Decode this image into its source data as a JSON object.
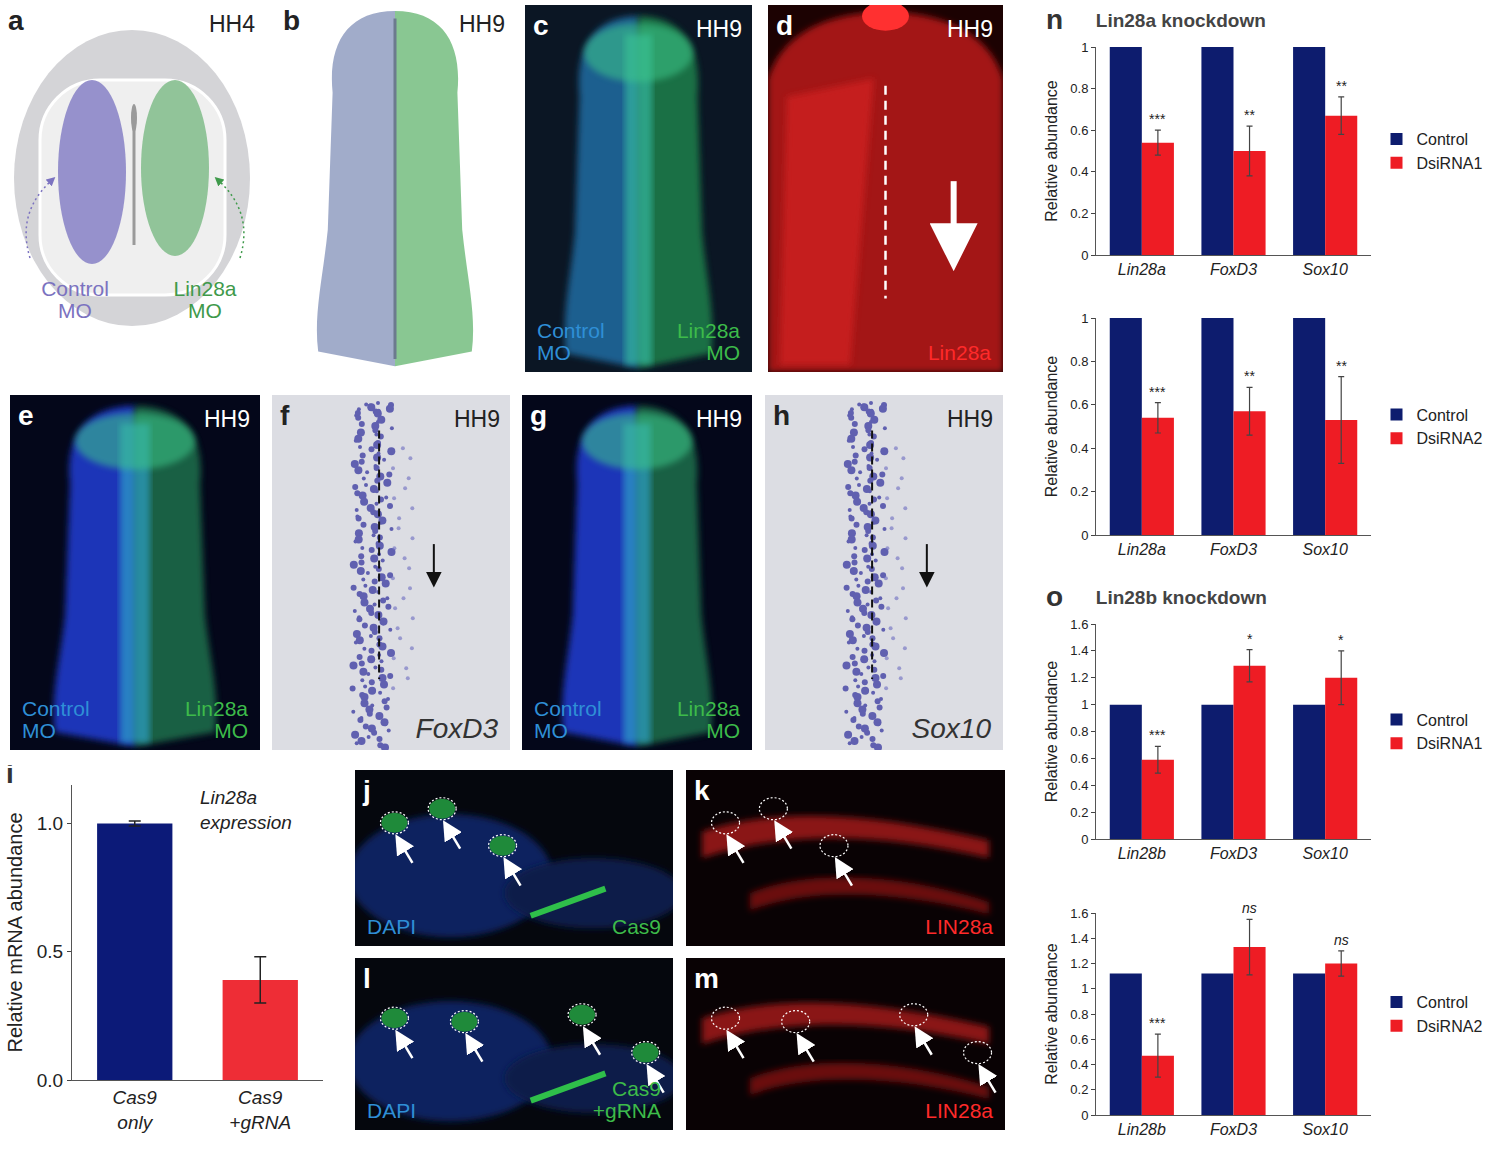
{
  "chart_data": [
    {
      "panel": "i",
      "type": "bar",
      "title": "Lin28a expression",
      "categories": [
        "Cas9 only",
        "Cas9 +gRNA"
      ],
      "values": [
        1.0,
        0.39
      ],
      "errors": [
        0.01,
        0.09
      ],
      "colors": [
        "#0c1a78",
        "#ee2d36"
      ],
      "y_label": "Relative mRNA abundance",
      "ylim": [
        0,
        1.15
      ],
      "yticks": [
        {
          "value": 0,
          "label": "0.0"
        },
        {
          "value": 0.5,
          "label": "0.5"
        },
        {
          "value": 1,
          "label": "1.0"
        }
      ],
      "grid": false
    },
    {
      "panel": "n",
      "type": "bar",
      "title": "Lin28a knockdown",
      "categories": [
        "Lin28a",
        "FoxD3",
        "Sox10"
      ],
      "series": [
        {
          "name": "Control",
          "color": "#0d1c6e",
          "values": [
            1,
            1,
            1
          ]
        },
        {
          "name": "DsiRNA1",
          "color": "#ee1c24",
          "values": [
            0.54,
            0.5,
            0.67
          ],
          "errors": [
            0.06,
            0.12,
            0.09
          ],
          "significance": [
            "***",
            "**",
            "**"
          ]
        }
      ],
      "y_label": "Relative abundance",
      "ylim": [
        0,
        1
      ],
      "yticks": [
        0,
        0.2,
        0.4,
        0.6,
        0.8,
        1
      ],
      "legend": "right",
      "grid": false
    },
    {
      "type": "bar",
      "categories": [
        "Lin28a",
        "FoxD3",
        "Sox10"
      ],
      "series": [
        {
          "name": "Control",
          "color": "#0d1c6e",
          "values": [
            1,
            1,
            1
          ]
        },
        {
          "name": "DsiRNA2",
          "color": "#ee1c24",
          "values": [
            0.54,
            0.57,
            0.53
          ],
          "errors": [
            0.07,
            0.11,
            0.2
          ],
          "significance": [
            "***",
            "**",
            "**"
          ]
        }
      ],
      "y_label": "Relative abundance",
      "ylim": [
        0,
        1
      ],
      "yticks": [
        0,
        0.2,
        0.4,
        0.6,
        0.8,
        1
      ],
      "legend": "right",
      "grid": false
    },
    {
      "panel": "o",
      "type": "bar",
      "title": "Lin28b knockdown",
      "categories": [
        "Lin28b",
        "FoxD3",
        "Sox10"
      ],
      "series": [
        {
          "name": "Control",
          "color": "#0d1c6e",
          "values": [
            1,
            1,
            1
          ]
        },
        {
          "name": "DsiRNA1",
          "color": "#ee1c24",
          "values": [
            0.59,
            1.29,
            1.2
          ],
          "errors": [
            0.1,
            0.12,
            0.2
          ],
          "significance": [
            "***",
            "*",
            "*"
          ]
        }
      ],
      "y_label": "Relative abundance",
      "ylim": [
        0,
        1.6
      ],
      "yticks": [
        0,
        0.2,
        0.4,
        0.6,
        0.8,
        1,
        1.2,
        1.4,
        1.6
      ],
      "legend": "right",
      "grid": false
    },
    {
      "type": "bar",
      "categories": [
        "Lin28b",
        "FoxD3",
        "Sox10"
      ],
      "series": [
        {
          "name": "Control",
          "color": "#0d1c6e",
          "values": [
            1.12,
            1.12,
            1.12
          ]
        },
        {
          "name": "DsiRNA2",
          "color": "#ee1c24",
          "values": [
            0.47,
            1.33,
            1.2
          ],
          "errors": [
            0.17,
            0.22,
            0.1
          ],
          "significance": [
            "***",
            "ns",
            "ns"
          ]
        }
      ],
      "y_label": "Relative abundance",
      "ylim": [
        0,
        1.6
      ],
      "yticks": [
        0,
        0.2,
        0.4,
        0.6,
        0.8,
        1,
        1.2,
        1.4,
        1.6
      ],
      "legend": "right",
      "grid": false
    }
  ],
  "panels": [
    {
      "letter": "a",
      "stage": "HH4",
      "labels": [
        {
          "text": "Control MO",
          "color": "#7b72c0"
        },
        {
          "text": "Lin28a MO",
          "color": "#3f9a4b"
        }
      ]
    },
    {
      "letter": "b",
      "stage": "HH9",
      "labels": []
    },
    {
      "letter": "c",
      "stage": "HH9",
      "labels": [
        {
          "text": "Control MO",
          "color": "#2f8fd6"
        },
        {
          "text": "Lin28a MO",
          "color": "#3dbb4a"
        }
      ]
    },
    {
      "letter": "d",
      "stage": "HH9",
      "labels": [
        {
          "text": "Lin28a",
          "color": "#ff2a2a"
        }
      ]
    },
    {
      "letter": "e",
      "stage": "HH9",
      "labels": [
        {
          "text": "Control MO",
          "color": "#2f8fd6"
        },
        {
          "text": "Lin28a MO",
          "color": "#3dbb4a"
        }
      ]
    },
    {
      "letter": "f",
      "stage": "HH9",
      "labels": [
        {
          "text": "FoxD3",
          "color": "#333333"
        }
      ]
    },
    {
      "letter": "g",
      "stage": "HH9",
      "labels": [
        {
          "text": "Control MO",
          "color": "#2f8fd6"
        },
        {
          "text": "Lin28a MO",
          "color": "#3dbb4a"
        }
      ]
    },
    {
      "letter": "h",
      "stage": "HH9",
      "labels": [
        {
          "text": "Sox10",
          "color": "#333333"
        }
      ]
    },
    {
      "letter": "j",
      "labels": [
        {
          "text": "DAPI",
          "color": "#2f8fd6"
        },
        {
          "text": "Cas9",
          "color": "#3dbb4a"
        }
      ]
    },
    {
      "letter": "k",
      "labels": [
        {
          "text": "LIN28a",
          "color": "#ff2a2a"
        }
      ]
    },
    {
      "letter": "l",
      "labels": [
        {
          "text": "DAPI",
          "color": "#2f8fd6"
        },
        {
          "text": "Cas9 +gRNA",
          "color": "#3dbb4a"
        }
      ]
    },
    {
      "letter": "m",
      "labels": [
        {
          "text": "LIN28a",
          "color": "#ff2a2a"
        }
      ]
    }
  ]
}
